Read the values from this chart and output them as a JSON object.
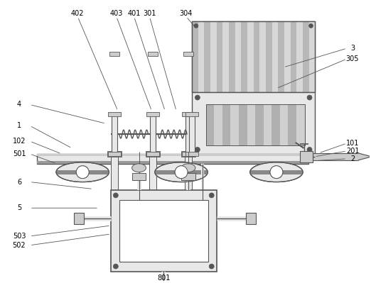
{
  "background_color": "#ffffff",
  "line_color": "#555555",
  "fill_light": "#e8e8e8",
  "fill_medium": "#cccccc",
  "fill_dark": "#aaaaaa",
  "figsize": [
    5.22,
    3.99
  ],
  "dpi": 100
}
